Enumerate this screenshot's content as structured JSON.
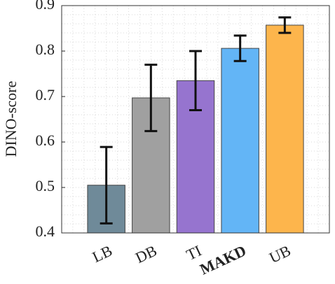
{
  "chart_data": {
    "type": "bar",
    "y_label": "DINO-score",
    "categories": [
      "LB",
      "DB",
      "TI",
      "MAKD",
      "UB"
    ],
    "values": [
      0.505,
      0.697,
      0.735,
      0.806,
      0.857
    ],
    "errors": [
      0.084,
      0.073,
      0.065,
      0.028,
      0.017
    ],
    "colors": [
      "#6f8a99",
      "#a0a0a0",
      "#9674cf",
      "#63b5f6",
      "#fdb54c"
    ],
    "bold_category_index": 3,
    "ylim": [
      0.4,
      0.9
    ],
    "yticks": [
      0.4,
      0.5,
      0.6,
      0.7,
      0.8,
      0.9
    ],
    "grid": true
  }
}
